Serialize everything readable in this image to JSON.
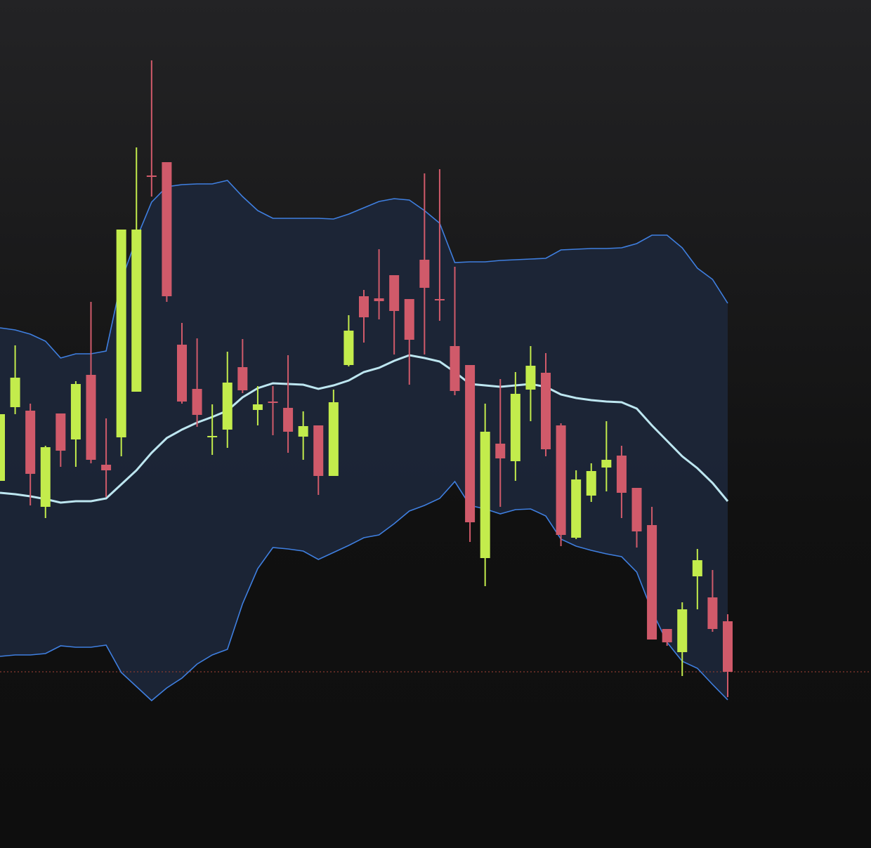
{
  "chart_data": {
    "type": "candlestick",
    "ylim": [
      -208,
      1000
    ],
    "open": [
      315,
      420,
      415,
      278,
      411,
      374,
      466,
      338,
      377,
      442,
      750,
      769,
      509,
      446,
      377,
      388,
      477,
      416,
      428,
      419,
      378,
      394,
      322,
      480,
      578,
      575,
      608,
      574,
      630,
      574,
      507,
      480,
      205,
      368,
      343,
      445,
      469,
      394,
      234,
      294,
      334,
      351,
      305,
      252,
      104,
      71,
      179,
      149,
      115
    ],
    "high": [
      410,
      508,
      425,
      365,
      411,
      457,
      570,
      404,
      673,
      790,
      914,
      769,
      540,
      518,
      424,
      499,
      517,
      450,
      450,
      494,
      414,
      394,
      445,
      551,
      587,
      645,
      608,
      574,
      753,
      759,
      620,
      480,
      425,
      460,
      470,
      507,
      497,
      397,
      330,
      340,
      400,
      365,
      305,
      278,
      104,
      142,
      218,
      188,
      125
    ],
    "low": [
      315,
      410,
      280,
      262,
      335,
      335,
      340,
      292,
      350,
      442,
      720,
      570,
      425,
      392,
      352,
      362,
      440,
      394,
      380,
      355,
      345,
      295,
      322,
      478,
      512,
      545,
      495,
      452,
      495,
      543,
      437,
      228,
      165,
      278,
      315,
      400,
      350,
      222,
      232,
      285,
      300,
      262,
      220,
      89,
      80,
      37,
      132,
      100,
      7
    ],
    "close": [
      410,
      462,
      325,
      363,
      358,
      453,
      345,
      330,
      673,
      673,
      748,
      578,
      428,
      409,
      379,
      455,
      444,
      424,
      426,
      385,
      393,
      322,
      427,
      529,
      548,
      571,
      557,
      516,
      590,
      572,
      443,
      256,
      385,
      347,
      439,
      479,
      360,
      238,
      317,
      329,
      345,
      298,
      243,
      89,
      85,
      132,
      202,
      104,
      43
    ],
    "upper": [
      533,
      530,
      524,
      514,
      490,
      496,
      496,
      500,
      600,
      660,
      712,
      734,
      737,
      738,
      738,
      743,
      720,
      700,
      689,
      689,
      689,
      689,
      688,
      695,
      704,
      713,
      717,
      715,
      700,
      682,
      626,
      627,
      627,
      629,
      630,
      631,
      632,
      644,
      645,
      646,
      646,
      647,
      653,
      665,
      665,
      647,
      618,
      602,
      568
    ],
    "middle": [
      298,
      296,
      293,
      289,
      284,
      286,
      286,
      290,
      310,
      330,
      355,
      376,
      388,
      398,
      406,
      415,
      434,
      447,
      454,
      453,
      452,
      446,
      451,
      458,
      470,
      476,
      486,
      494,
      490,
      485,
      470,
      453,
      451,
      449,
      451,
      453,
      449,
      438,
      433,
      430,
      428,
      427,
      418,
      394,
      372,
      350,
      333,
      312,
      286
    ],
    "lower": [
      65,
      67,
      67,
      69,
      80,
      78,
      78,
      81,
      42,
      22,
      2,
      20,
      34,
      54,
      67,
      75,
      140,
      190,
      220,
      218,
      215,
      203,
      213,
      223,
      234,
      238,
      254,
      272,
      280,
      290,
      314,
      280,
      275,
      268,
      274,
      275,
      265,
      232,
      222,
      216,
      211,
      207,
      185,
      130,
      85,
      58,
      48,
      25,
      3
    ],
    "last_price": 43,
    "up_color": "#c3ec4c",
    "down_color": "#d05a6a",
    "band_fill": "#1c2638",
    "band_line_color": "#3f7fe0",
    "middle_color": "#bde6f0",
    "last_price_color": "#8a3a30"
  }
}
